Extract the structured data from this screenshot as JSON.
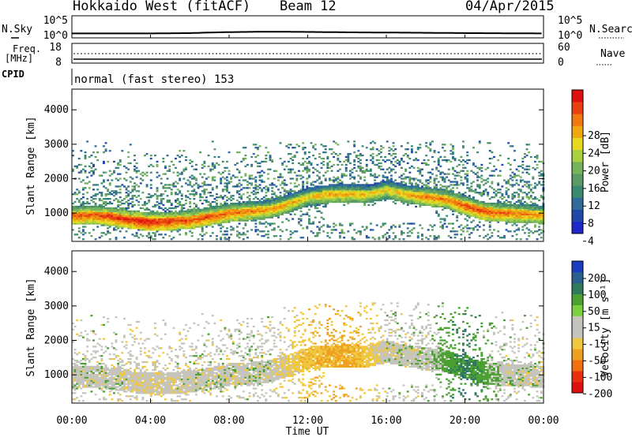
{
  "header": {
    "station": "Hokkaido West (fitACF)",
    "beam": "Beam 12",
    "date": "04/Apr/2015"
  },
  "noise_panel": {
    "left_label": "N.Sky",
    "left_ticks": [
      "10^5",
      "10^0"
    ],
    "right_label": "N.Search",
    "right_ticks": [
      "10^5",
      "10^0"
    ]
  },
  "freq_panel": {
    "label_line1": "Freq.",
    "label_line2": "[MHz]",
    "left_ticks": [
      "18",
      "8"
    ],
    "right_ticks": [
      "60",
      "0"
    ],
    "right_label": "Nave"
  },
  "cpid_panel": {
    "label": "CPID",
    "text": "normal (fast stereo) 153"
  },
  "power_panel": {
    "ylabel": "Slant Range [km]",
    "yticks": [
      "1000",
      "2000",
      "3000",
      "4000"
    ],
    "colorbar_label": "Power [dB]",
    "colorbar_ticks": [
      "4",
      "8",
      "12",
      "16",
      "20",
      "24",
      "28"
    ],
    "colorbar_colors": [
      "#1e28c8",
      "#2048a8",
      "#2f6a9a",
      "#3a8a72",
      "#5a9a64",
      "#76b45c",
      "#a8d040",
      "#e8d820",
      "#f0a810",
      "#f07810",
      "#e84010",
      "#e01010"
    ]
  },
  "velocity_panel": {
    "ylabel": "Slant Range [km]",
    "yticks": [
      "1000",
      "2000",
      "3000",
      "4000"
    ],
    "colorbar_label": "Velocity [m s⁻¹]",
    "colorbar_ticks": [
      "200",
      "100",
      "50",
      "15",
      "-15",
      "-50",
      "-100",
      "-200"
    ],
    "colorbar_colors": [
      "#1a3cc0",
      "#2a6090",
      "#2f7a5a",
      "#4aa030",
      "#7cd040",
      "#c4c4bc",
      "#c4c4bc",
      "#f0c840",
      "#f0a020",
      "#f07010",
      "#e83010",
      "#e01010"
    ]
  },
  "x_axis": {
    "label": "Time UT",
    "ticks": [
      "00:00",
      "04:00",
      "08:00",
      "12:00",
      "16:00",
      "20:00",
      "00:00"
    ]
  },
  "chart_data": [
    {
      "type": "line",
      "title": "Hokkaido West (fitACF)",
      "series": [
        {
          "name": "N.Sky",
          "x_hours": [
            0,
            2,
            4,
            6,
            8,
            10,
            12,
            14,
            16,
            18,
            20,
            22,
            24
          ],
          "values": [
            10,
            10,
            10,
            12,
            20,
            25,
            22,
            18,
            16,
            14,
            12,
            11,
            10
          ]
        }
      ],
      "xlim": [
        0,
        24
      ],
      "ylim": [
        1,
        100000
      ],
      "yscale": "log"
    },
    {
      "type": "heatmap",
      "xlabel": "Time UT",
      "ylabel": "Slant Range [km]",
      "colorbar": "Power [dB]",
      "xlim": [
        0,
        24
      ],
      "ylim": [
        180,
        4600
      ],
      "zlim": [
        0,
        30
      ],
      "x_hours": [
        0,
        1,
        2,
        3,
        4,
        5,
        6,
        7,
        8,
        9,
        10,
        11,
        12,
        13,
        14,
        15,
        16,
        17,
        18,
        19,
        20,
        21,
        22,
        23,
        24
      ],
      "main_band_center_km": [
        900,
        920,
        870,
        780,
        720,
        740,
        780,
        880,
        980,
        1030,
        1080,
        1250,
        1450,
        1520,
        1530,
        1520,
        1650,
        1520,
        1450,
        1380,
        1180,
        1020,
        980,
        960,
        920
      ],
      "main_band_peak_db": [
        26,
        26,
        27,
        28,
        28,
        27,
        26,
        26,
        25,
        24,
        23,
        22,
        20,
        22,
        22,
        21,
        20,
        22,
        24,
        24,
        26,
        26,
        25,
        24,
        23
      ]
    },
    {
      "type": "heatmap",
      "xlabel": "Time UT",
      "ylabel": "Slant Range [km]",
      "colorbar": "Velocity [m s⁻¹]",
      "xlim": [
        0,
        24
      ],
      "ylim": [
        180,
        4600
      ],
      "zlim": [
        -200,
        200
      ],
      "x_hours": [
        0,
        2,
        4,
        6,
        8,
        10,
        12,
        14,
        16,
        18,
        20,
        22,
        24
      ],
      "dominant_velocity": [
        0,
        0,
        -10,
        0,
        0,
        0,
        -40,
        -60,
        0,
        0,
        60,
        0,
        0
      ]
    }
  ]
}
